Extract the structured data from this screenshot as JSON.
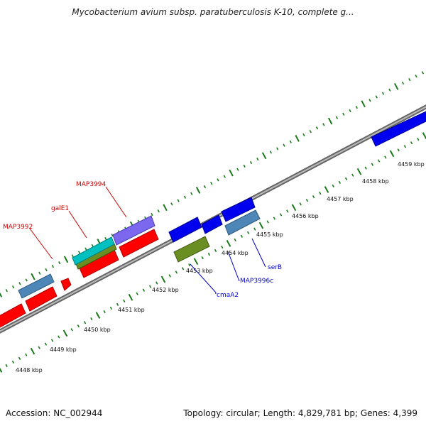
{
  "title": "Mycobacterium avium subsp. paratuberculosis K-10, complete g...",
  "footer": {
    "accession": "Accession: NC_002944",
    "stats": "Topology: circular; Length: 4,829,781 bp; Genes: 4,399"
  },
  "colors": {
    "backbone": "#888888",
    "tick": "#1a7a1a",
    "forward_cds": "#0000ee",
    "reverse_cds": "#ff0000",
    "label_reverse": "#cc0000",
    "label_forward": "#0000cc",
    "steel": "#4f86b8",
    "olive": "#6b8e23",
    "cyan": "#00c0c0",
    "lavender": "#7b68ee"
  },
  "ruler": {
    "labels": [
      "4448 kbp",
      "4449 kbp",
      "4450 kbp",
      "4451 kbp",
      "4452 kbp",
      "4453 kbp",
      "4454 kbp",
      "4455 kbp",
      "4456 kbp",
      "4457 kbp",
      "4458 kbp",
      "4459 kbp"
    ]
  },
  "gene_labels": [
    {
      "text": "MAP3992",
      "strand": "reverse"
    },
    {
      "text": "galE1",
      "strand": "reverse"
    },
    {
      "text": "MAP3994",
      "strand": "reverse"
    },
    {
      "text": "cmaA2",
      "strand": "forward"
    },
    {
      "text": "MAP3996c",
      "strand": "forward"
    },
    {
      "text": "serB",
      "strand": "forward"
    }
  ]
}
